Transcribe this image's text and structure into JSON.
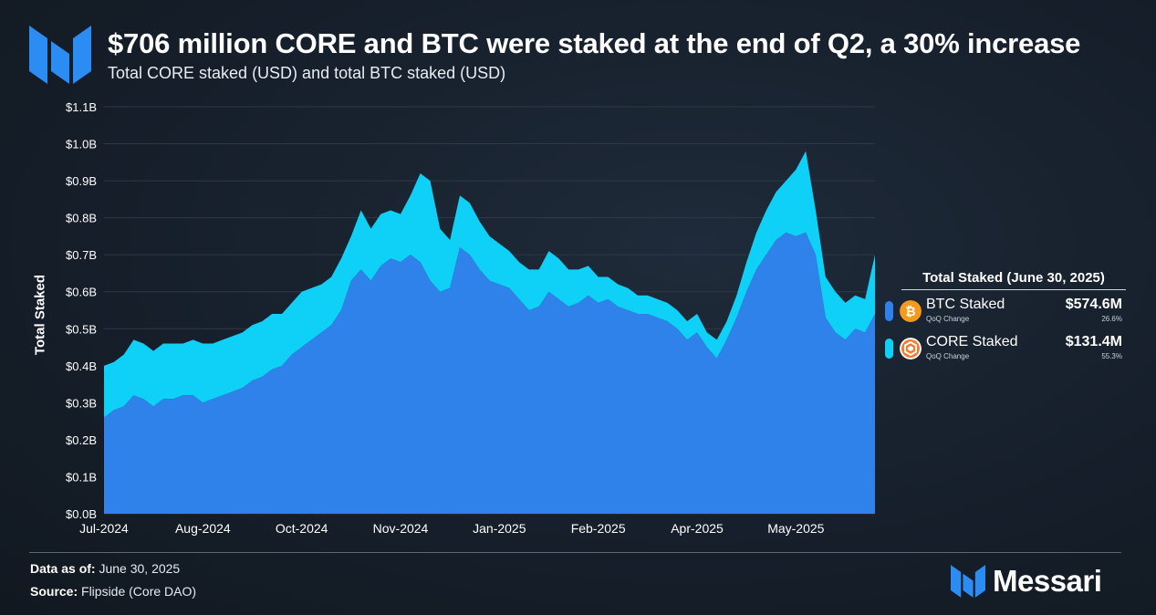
{
  "header": {
    "title": "$706 million CORE and BTC were staked at the end of Q2, a 30% increase",
    "subtitle": "Total CORE staked (USD) and total BTC staked (USD)"
  },
  "colors": {
    "btc_area": "#2e82ea",
    "core_area": "#0fd1f7",
    "grid": "#2e3946",
    "brand_blue": "#2b8cf3",
    "bitcoin_orange": "#f59a1c",
    "core_orange": "#f47c2b"
  },
  "chart_data": {
    "type": "area",
    "stacked": true,
    "title": "",
    "xlabel": "",
    "ylabel": "Total Staked",
    "ylim": [
      0,
      1.1
    ],
    "y_unit": "billions USD",
    "y_ticks": [
      "$0.0B",
      "$0.1B",
      "$0.2B",
      "$0.3B",
      "$0.4B",
      "$0.5B",
      "$0.6B",
      "$0.7B",
      "$0.8B",
      "$0.9B",
      "$1.0B",
      "$1.1B"
    ],
    "x_tick_labels": [
      "Jul-2024",
      "Aug-2024",
      "Oct-2024",
      "Nov-2024",
      "Jan-2025",
      "Feb-2025",
      "Apr-2025",
      "May-2025"
    ],
    "x_tick_positions": [
      0,
      10,
      20,
      30,
      40,
      50,
      60,
      70
    ],
    "x": [
      0,
      1,
      2,
      3,
      4,
      5,
      6,
      7,
      8,
      9,
      10,
      11,
      12,
      13,
      14,
      15,
      16,
      17,
      18,
      19,
      20,
      21,
      22,
      23,
      24,
      25,
      26,
      27,
      28,
      29,
      30,
      31,
      32,
      33,
      34,
      35,
      36,
      37,
      38,
      39,
      40,
      41,
      42,
      43,
      44,
      45,
      46,
      47,
      48,
      49,
      50,
      51,
      52,
      53,
      54,
      55,
      56,
      57,
      58,
      59,
      60,
      61,
      62,
      63,
      64,
      65,
      66,
      67,
      68,
      69,
      70,
      71,
      72,
      73,
      74,
      75,
      76,
      77,
      78
    ],
    "series": [
      {
        "name": "BTC Staked",
        "values": [
          0.26,
          0.28,
          0.29,
          0.32,
          0.31,
          0.29,
          0.31,
          0.31,
          0.32,
          0.32,
          0.3,
          0.31,
          0.32,
          0.33,
          0.34,
          0.36,
          0.37,
          0.39,
          0.4,
          0.43,
          0.45,
          0.47,
          0.49,
          0.51,
          0.55,
          0.63,
          0.66,
          0.63,
          0.67,
          0.69,
          0.68,
          0.7,
          0.68,
          0.63,
          0.6,
          0.61,
          0.72,
          0.7,
          0.66,
          0.63,
          0.62,
          0.61,
          0.58,
          0.55,
          0.56,
          0.6,
          0.58,
          0.56,
          0.57,
          0.59,
          0.57,
          0.58,
          0.56,
          0.55,
          0.54,
          0.54,
          0.53,
          0.52,
          0.5,
          0.47,
          0.49,
          0.45,
          0.42,
          0.47,
          0.53,
          0.6,
          0.66,
          0.7,
          0.74,
          0.76,
          0.75,
          0.76,
          0.7,
          0.53,
          0.49,
          0.47,
          0.5,
          0.49,
          0.54
        ]
      },
      {
        "name": "CORE Staked",
        "values": [
          0.14,
          0.13,
          0.14,
          0.15,
          0.15,
          0.15,
          0.15,
          0.15,
          0.14,
          0.15,
          0.16,
          0.15,
          0.15,
          0.15,
          0.15,
          0.15,
          0.15,
          0.15,
          0.14,
          0.14,
          0.15,
          0.14,
          0.13,
          0.13,
          0.14,
          0.12,
          0.16,
          0.14,
          0.14,
          0.13,
          0.13,
          0.16,
          0.24,
          0.27,
          0.17,
          0.13,
          0.14,
          0.14,
          0.13,
          0.12,
          0.11,
          0.1,
          0.1,
          0.11,
          0.1,
          0.11,
          0.11,
          0.1,
          0.09,
          0.08,
          0.07,
          0.06,
          0.06,
          0.06,
          0.05,
          0.05,
          0.05,
          0.05,
          0.05,
          0.05,
          0.05,
          0.04,
          0.05,
          0.05,
          0.06,
          0.08,
          0.1,
          0.12,
          0.13,
          0.14,
          0.18,
          0.22,
          0.12,
          0.11,
          0.11,
          0.1,
          0.09,
          0.09,
          0.16
        ]
      }
    ]
  },
  "legend": {
    "title": "Total Staked (June 30, 2025)",
    "qoq_label": "QoQ Change",
    "items": [
      {
        "name": "BTC Staked",
        "value": "$574.6M",
        "qoq": "26.6%",
        "icon": "bitcoin-icon"
      },
      {
        "name": "CORE Staked",
        "value": "$131.4M",
        "qoq": "55.3%",
        "icon": "core-icon"
      }
    ]
  },
  "footer": {
    "data_as_of_label": "Data as of:",
    "data_as_of_value": "June 30, 2025",
    "source_label": "Source:",
    "source_value": "Flipside (Core DAO)",
    "brand": "Messari"
  }
}
